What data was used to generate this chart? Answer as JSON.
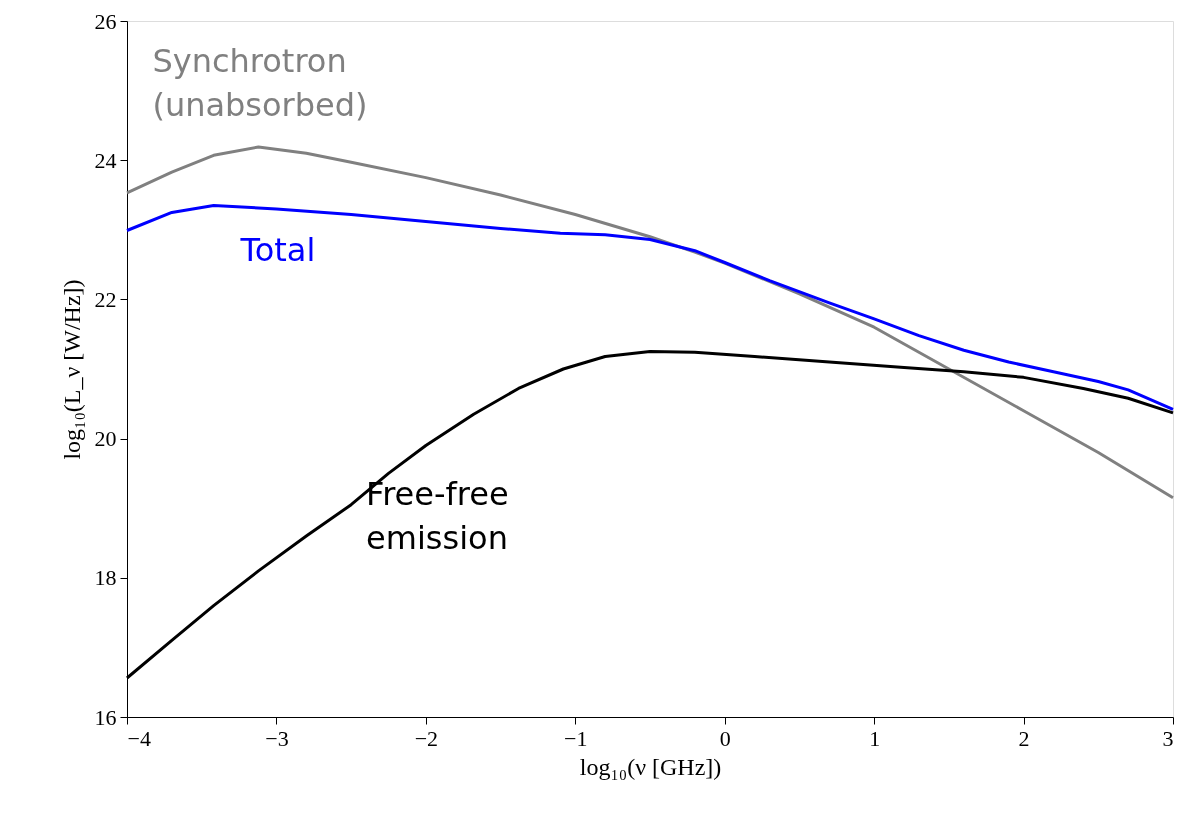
{
  "chart_data": {
    "type": "line",
    "xlabel": "log₁₀(ν [GHz])",
    "ylabel": "log₁₀(L_ν [W/Hz])",
    "xlim": [
      -4,
      3
    ],
    "ylim": [
      16,
      26
    ],
    "xticks": [
      -4,
      -3,
      -2,
      -1,
      0,
      1,
      2,
      3
    ],
    "yticks": [
      16,
      18,
      20,
      22,
      24,
      26
    ],
    "grid": false,
    "legend": false,
    "marker": "none",
    "line_style": "solid",
    "series": [
      {
        "name": "Synchrotron\n(unabsorbed)",
        "color": "#808080",
        "x": [
          -4,
          -3.7,
          -3.42,
          -3.12,
          -2.8,
          -2.5,
          -2,
          -1.5,
          -1,
          -0.5,
          -0.2,
          0,
          0.5,
          1,
          1.5,
          2,
          2.5,
          3
        ],
        "values": [
          23.53,
          23.83,
          24.07,
          24.19,
          24.1,
          23.97,
          23.75,
          23.5,
          23.22,
          22.9,
          22.68,
          22.52,
          22.08,
          21.6,
          21.0,
          20.4,
          19.8,
          19.15
        ]
      },
      {
        "name": "Total",
        "color": "#0000ff",
        "x": [
          -4,
          -3.7,
          -3.42,
          -3,
          -2.5,
          -2,
          -1.5,
          -1.1,
          -0.8,
          -0.5,
          -0.2,
          0,
          0.3,
          0.7,
          1,
          1.3,
          1.6,
          1.9,
          2.2,
          2.5,
          2.7,
          3
        ],
        "values": [
          22.99,
          23.25,
          23.35,
          23.3,
          23.22,
          23.12,
          23.02,
          22.95,
          22.93,
          22.86,
          22.7,
          22.53,
          22.27,
          21.95,
          21.72,
          21.48,
          21.27,
          21.1,
          20.96,
          20.82,
          20.7,
          20.42
        ]
      },
      {
        "name": "Free-free\nemission",
        "color": "#000000",
        "x": [
          -4,
          -3.7,
          -3.42,
          -3.12,
          -2.8,
          -2.5,
          -2.25,
          -2,
          -1.68,
          -1.38,
          -1.08,
          -0.8,
          -0.5,
          -0.2,
          0.2,
          0.7,
          1.2,
          1.6,
          2,
          2.4,
          2.7,
          3
        ],
        "values": [
          16.56,
          17.1,
          17.6,
          18.1,
          18.6,
          19.05,
          19.5,
          19.9,
          20.35,
          20.72,
          21.0,
          21.18,
          21.25,
          21.24,
          21.18,
          21.1,
          21.02,
          20.96,
          20.88,
          20.72,
          20.58,
          20.37
        ]
      }
    ]
  }
}
